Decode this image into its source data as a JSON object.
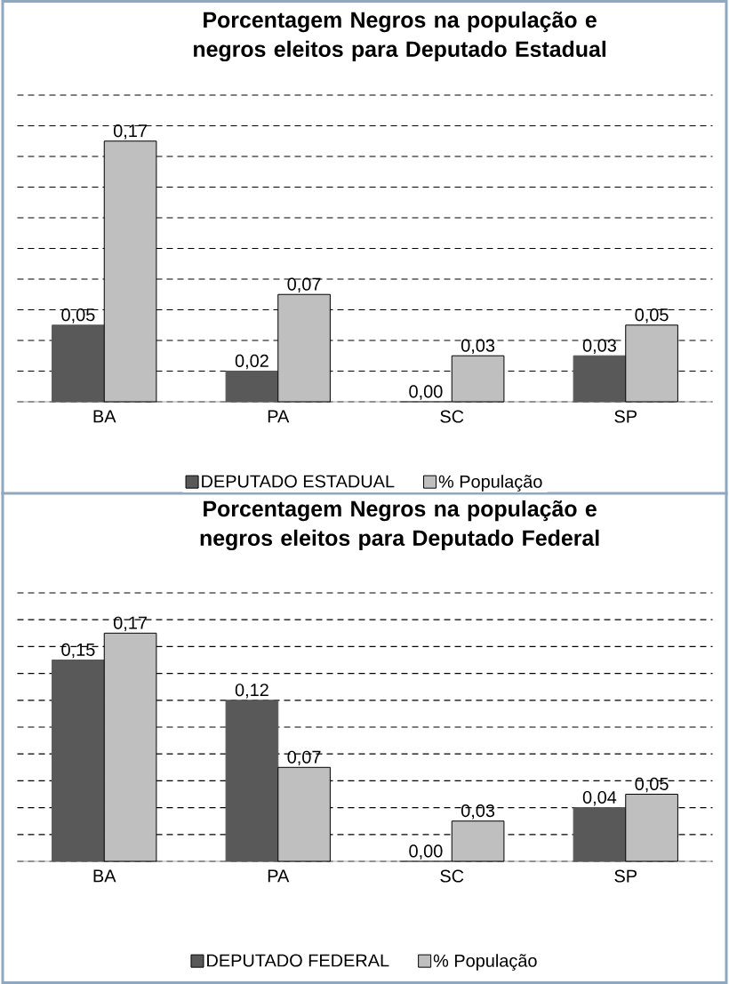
{
  "chart_data": [
    {
      "type": "bar",
      "title": "Porcentagem Negros na população e negros eleitos para Deputado Estadual",
      "categories": [
        "BA",
        "PA",
        "SC",
        "SP"
      ],
      "series": [
        {
          "name": "DEPUTADO ESTADUAL",
          "color": "#595959",
          "values": [
            0.05,
            0.02,
            0.0,
            0.03
          ],
          "value_labels": [
            "0,05",
            "0,02",
            "0,00",
            "0,03"
          ]
        },
        {
          "name": "% População",
          "color": "#bfbfbf",
          "values": [
            0.17,
            0.07,
            0.03,
            0.05
          ],
          "value_labels": [
            "0,17",
            "0,07",
            "0,03",
            "0,05"
          ]
        }
      ],
      "grid": "y",
      "tick_labels": "x",
      "legend": "bottom"
    },
    {
      "type": "bar",
      "title": "Porcentagem Negros na população e negros eleitos para Deputado Federal",
      "categories": [
        "BA",
        "PA",
        "SC",
        "SP"
      ],
      "series": [
        {
          "name": "DEPUTADO FEDERAL",
          "color": "#595959",
          "values": [
            0.15,
            0.12,
            0.0,
            0.04
          ],
          "value_labels": [
            "0,15",
            "0,12",
            "0,00",
            "0,04"
          ]
        },
        {
          "name": "% População",
          "color": "#bfbfbf",
          "values": [
            0.17,
            0.07,
            0.03,
            0.05
          ],
          "value_labels": [
            "0,17",
            "0,07",
            "0,03",
            "0,05"
          ]
        }
      ],
      "grid": "y",
      "tick_labels": "x",
      "legend": "bottom"
    }
  ]
}
